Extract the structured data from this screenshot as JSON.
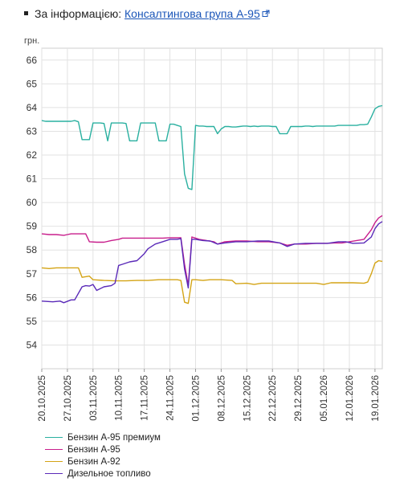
{
  "source": {
    "prefix": "За інформацією:",
    "link_text": "Консалтингова група А-95",
    "icon": "external-link-icon"
  },
  "chart_data": {
    "type": "line",
    "title": "",
    "ylabel": "грн.",
    "xlabel": "",
    "ylim": [
      53,
      66.5
    ],
    "yticks": [
      54,
      55,
      56,
      57,
      58,
      59,
      60,
      61,
      62,
      63,
      64,
      65,
      66
    ],
    "xlim": [
      "2025-10-20",
      "2026-01-21"
    ],
    "xticks": [
      "2025-10-20",
      "2025-10-27",
      "2025-11-03",
      "2025-11-10",
      "2025-11-17",
      "2025-11-24",
      "2025-12-01",
      "2025-12-08",
      "2025-12-15",
      "2025-12-22",
      "2025-12-29",
      "2026-01-05",
      "2026-01-12",
      "2026-01-19"
    ],
    "xtick_labels": [
      "20.10.2025",
      "27.10.2025",
      "03.11.2025",
      "10.11.2025",
      "17.11.2025",
      "24.11.2025",
      "01.12.2025",
      "08.12.2025",
      "15.12.2025",
      "22.12.2025",
      "29.12.2025",
      "05.01.2026",
      "12.01.2026",
      "19.01.2026"
    ],
    "grid": true,
    "legend_position": "bottom",
    "series": [
      {
        "name": "Бензин А-95 премиум",
        "color": "#2ab0a0",
        "points": [
          [
            "2025-10-20",
            63.45
          ],
          [
            "2025-10-21",
            63.42
          ],
          [
            "2025-10-22",
            63.42
          ],
          [
            "2025-10-23",
            63.42
          ],
          [
            "2025-10-24",
            63.42
          ],
          [
            "2025-10-25",
            63.42
          ],
          [
            "2025-10-26",
            63.42
          ],
          [
            "2025-10-27",
            63.42
          ],
          [
            "2025-10-28",
            63.42
          ],
          [
            "2025-10-29",
            63.45
          ],
          [
            "2025-10-30",
            63.4
          ],
          [
            "2025-10-31",
            62.65
          ],
          [
            "2025-11-01",
            62.65
          ],
          [
            "2025-11-02",
            62.65
          ],
          [
            "2025-11-03",
            63.35
          ],
          [
            "2025-11-04",
            63.35
          ],
          [
            "2025-11-05",
            63.35
          ],
          [
            "2025-11-06",
            63.33
          ],
          [
            "2025-11-07",
            62.6
          ],
          [
            "2025-11-08",
            63.35
          ],
          [
            "2025-11-09",
            63.35
          ],
          [
            "2025-11-10",
            63.35
          ],
          [
            "2025-11-11",
            63.35
          ],
          [
            "2025-11-12",
            63.33
          ],
          [
            "2025-11-13",
            62.6
          ],
          [
            "2025-11-14",
            62.6
          ],
          [
            "2025-11-15",
            62.6
          ],
          [
            "2025-11-16",
            63.35
          ],
          [
            "2025-11-17",
            63.35
          ],
          [
            "2025-11-18",
            63.35
          ],
          [
            "2025-11-19",
            63.35
          ],
          [
            "2025-11-20",
            63.35
          ],
          [
            "2025-11-21",
            62.6
          ],
          [
            "2025-11-22",
            62.6
          ],
          [
            "2025-11-23",
            62.6
          ],
          [
            "2025-11-24",
            63.3
          ],
          [
            "2025-11-25",
            63.3
          ],
          [
            "2025-11-26",
            63.25
          ],
          [
            "2025-11-27",
            63.2
          ],
          [
            "2025-11-28",
            61.2
          ],
          [
            "2025-11-29",
            60.6
          ],
          [
            "2025-11-30",
            60.55
          ],
          [
            "2025-12-01",
            63.25
          ],
          [
            "2025-12-02",
            63.22
          ],
          [
            "2025-12-03",
            63.22
          ],
          [
            "2025-12-04",
            63.2
          ],
          [
            "2025-12-05",
            63.2
          ],
          [
            "2025-12-06",
            63.2
          ],
          [
            "2025-12-07",
            62.9
          ],
          [
            "2025-12-08",
            63.1
          ],
          [
            "2025-12-09",
            63.2
          ],
          [
            "2025-12-10",
            63.2
          ],
          [
            "2025-12-11",
            63.18
          ],
          [
            "2025-12-12",
            63.18
          ],
          [
            "2025-12-13",
            63.2
          ],
          [
            "2025-12-14",
            63.22
          ],
          [
            "2025-12-15",
            63.22
          ],
          [
            "2025-12-16",
            63.2
          ],
          [
            "2025-12-17",
            63.22
          ],
          [
            "2025-12-18",
            63.2
          ],
          [
            "2025-12-19",
            63.22
          ],
          [
            "2025-12-20",
            63.22
          ],
          [
            "2025-12-21",
            63.22
          ],
          [
            "2025-12-22",
            63.2
          ],
          [
            "2025-12-23",
            63.2
          ],
          [
            "2025-12-24",
            62.9
          ],
          [
            "2025-12-25",
            62.9
          ],
          [
            "2025-12-26",
            62.9
          ],
          [
            "2025-12-27",
            63.2
          ],
          [
            "2025-12-28",
            63.2
          ],
          [
            "2025-12-29",
            63.2
          ],
          [
            "2025-12-30",
            63.2
          ],
          [
            "2025-12-31",
            63.22
          ],
          [
            "2026-01-01",
            63.22
          ],
          [
            "2026-01-02",
            63.2
          ],
          [
            "2026-01-03",
            63.22
          ],
          [
            "2026-01-04",
            63.22
          ],
          [
            "2026-01-05",
            63.22
          ],
          [
            "2026-01-06",
            63.22
          ],
          [
            "2026-01-07",
            63.22
          ],
          [
            "2026-01-08",
            63.22
          ],
          [
            "2026-01-09",
            63.25
          ],
          [
            "2026-01-10",
            63.25
          ],
          [
            "2026-01-11",
            63.25
          ],
          [
            "2026-01-12",
            63.25
          ],
          [
            "2026-01-13",
            63.25
          ],
          [
            "2026-01-14",
            63.25
          ],
          [
            "2026-01-15",
            63.28
          ],
          [
            "2026-01-16",
            63.28
          ],
          [
            "2026-01-17",
            63.3
          ],
          [
            "2026-01-18",
            63.6
          ],
          [
            "2026-01-19",
            63.95
          ],
          [
            "2026-01-20",
            64.05
          ],
          [
            "2026-01-21",
            64.08
          ]
        ]
      },
      {
        "name": "Бензин А-95",
        "color": "#c81e8c",
        "points": [
          [
            "2025-10-20",
            58.68
          ],
          [
            "2025-10-22",
            58.65
          ],
          [
            "2025-10-24",
            58.65
          ],
          [
            "2025-10-26",
            58.62
          ],
          [
            "2025-10-27",
            58.65
          ],
          [
            "2025-10-28",
            58.68
          ],
          [
            "2025-10-30",
            58.68
          ],
          [
            "2025-11-01",
            58.68
          ],
          [
            "2025-11-02",
            58.35
          ],
          [
            "2025-11-04",
            58.33
          ],
          [
            "2025-11-06",
            58.33
          ],
          [
            "2025-11-08",
            58.4
          ],
          [
            "2025-11-10",
            58.45
          ],
          [
            "2025-11-11",
            58.5
          ],
          [
            "2025-11-14",
            58.5
          ],
          [
            "2025-11-18",
            58.5
          ],
          [
            "2025-11-22",
            58.5
          ],
          [
            "2025-11-24",
            58.52
          ],
          [
            "2025-11-27",
            58.52
          ],
          [
            "2025-11-28",
            57.4
          ],
          [
            "2025-11-29",
            56.5
          ],
          [
            "2025-11-30",
            58.55
          ],
          [
            "2025-12-01",
            58.5
          ],
          [
            "2025-12-02",
            58.45
          ],
          [
            "2025-12-04",
            58.4
          ],
          [
            "2025-12-06",
            58.35
          ],
          [
            "2025-12-07",
            58.25
          ],
          [
            "2025-12-09",
            58.35
          ],
          [
            "2025-12-12",
            58.38
          ],
          [
            "2025-12-15",
            58.38
          ],
          [
            "2025-12-18",
            58.35
          ],
          [
            "2025-12-21",
            58.35
          ],
          [
            "2025-12-24",
            58.3
          ],
          [
            "2025-12-26",
            58.2
          ],
          [
            "2025-12-28",
            58.25
          ],
          [
            "2025-12-31",
            58.25
          ],
          [
            "2026-01-03",
            58.28
          ],
          [
            "2026-01-06",
            58.28
          ],
          [
            "2026-01-08",
            58.3
          ],
          [
            "2026-01-10",
            58.3
          ],
          [
            "2026-01-12",
            58.35
          ],
          [
            "2026-01-14",
            58.4
          ],
          [
            "2026-01-16",
            58.45
          ],
          [
            "2026-01-18",
            58.85
          ],
          [
            "2026-01-19",
            59.15
          ],
          [
            "2026-01-20",
            59.35
          ],
          [
            "2026-01-21",
            59.45
          ]
        ]
      },
      {
        "name": "Бензин А-92",
        "color": "#d4a416",
        "points": [
          [
            "2025-10-20",
            57.25
          ],
          [
            "2025-10-22",
            57.22
          ],
          [
            "2025-10-24",
            57.25
          ],
          [
            "2025-10-27",
            57.25
          ],
          [
            "2025-10-30",
            57.25
          ],
          [
            "2025-10-31",
            56.85
          ],
          [
            "2025-11-02",
            56.9
          ],
          [
            "2025-11-03",
            56.75
          ],
          [
            "2025-11-06",
            56.72
          ],
          [
            "2025-11-09",
            56.7
          ],
          [
            "2025-11-12",
            56.7
          ],
          [
            "2025-11-15",
            56.72
          ],
          [
            "2025-11-18",
            56.72
          ],
          [
            "2025-11-21",
            56.75
          ],
          [
            "2025-11-24",
            56.75
          ],
          [
            "2025-11-26",
            56.75
          ],
          [
            "2025-11-27",
            56.72
          ],
          [
            "2025-11-28",
            55.8
          ],
          [
            "2025-11-29",
            55.75
          ],
          [
            "2025-11-30",
            56.75
          ],
          [
            "2025-12-01",
            56.75
          ],
          [
            "2025-12-03",
            56.72
          ],
          [
            "2025-12-05",
            56.75
          ],
          [
            "2025-12-08",
            56.75
          ],
          [
            "2025-12-11",
            56.72
          ],
          [
            "2025-12-12",
            56.58
          ],
          [
            "2025-12-15",
            56.6
          ],
          [
            "2025-12-17",
            56.55
          ],
          [
            "2025-12-19",
            56.6
          ],
          [
            "2025-12-22",
            56.6
          ],
          [
            "2025-12-25",
            56.6
          ],
          [
            "2025-12-28",
            56.6
          ],
          [
            "2025-12-31",
            56.6
          ],
          [
            "2026-01-03",
            56.6
          ],
          [
            "2026-01-05",
            56.55
          ],
          [
            "2026-01-07",
            56.62
          ],
          [
            "2026-01-10",
            56.62
          ],
          [
            "2026-01-13",
            56.62
          ],
          [
            "2026-01-16",
            56.6
          ],
          [
            "2026-01-17",
            56.65
          ],
          [
            "2026-01-18",
            57.0
          ],
          [
            "2026-01-19",
            57.45
          ],
          [
            "2026-01-20",
            57.55
          ],
          [
            "2026-01-21",
            57.52
          ]
        ]
      },
      {
        "name": "Дизельное топливо",
        "color": "#5a2ab8",
        "points": [
          [
            "2025-10-20",
            55.85
          ],
          [
            "2025-10-23",
            55.82
          ],
          [
            "2025-10-25",
            55.85
          ],
          [
            "2025-10-26",
            55.78
          ],
          [
            "2025-10-28",
            55.9
          ],
          [
            "2025-10-29",
            55.9
          ],
          [
            "2025-10-31",
            56.45
          ],
          [
            "2025-11-01",
            56.5
          ],
          [
            "2025-11-02",
            56.48
          ],
          [
            "2025-11-03",
            56.55
          ],
          [
            "2025-11-04",
            56.3
          ],
          [
            "2025-11-06",
            56.45
          ],
          [
            "2025-11-08",
            56.5
          ],
          [
            "2025-11-09",
            56.6
          ],
          [
            "2025-11-10",
            57.35
          ],
          [
            "2025-11-11",
            57.4
          ],
          [
            "2025-11-13",
            57.5
          ],
          [
            "2025-11-15",
            57.55
          ],
          [
            "2025-11-17",
            57.85
          ],
          [
            "2025-11-18",
            58.05
          ],
          [
            "2025-11-20",
            58.25
          ],
          [
            "2025-11-22",
            58.35
          ],
          [
            "2025-11-24",
            58.45
          ],
          [
            "2025-11-26",
            58.45
          ],
          [
            "2025-11-27",
            58.48
          ],
          [
            "2025-11-28",
            57.2
          ],
          [
            "2025-11-29",
            56.4
          ],
          [
            "2025-11-30",
            58.45
          ],
          [
            "2025-12-01",
            58.45
          ],
          [
            "2025-12-03",
            58.4
          ],
          [
            "2025-12-05",
            58.38
          ],
          [
            "2025-12-07",
            58.25
          ],
          [
            "2025-12-09",
            58.3
          ],
          [
            "2025-12-12",
            58.35
          ],
          [
            "2025-12-15",
            58.35
          ],
          [
            "2025-12-18",
            58.38
          ],
          [
            "2025-12-21",
            58.38
          ],
          [
            "2025-12-24",
            58.3
          ],
          [
            "2025-12-26",
            58.15
          ],
          [
            "2025-12-28",
            58.25
          ],
          [
            "2025-12-31",
            58.28
          ],
          [
            "2026-01-03",
            58.28
          ],
          [
            "2026-01-06",
            58.28
          ],
          [
            "2026-01-09",
            58.35
          ],
          [
            "2026-01-11",
            58.35
          ],
          [
            "2026-01-13",
            58.28
          ],
          [
            "2026-01-16",
            58.3
          ],
          [
            "2026-01-18",
            58.55
          ],
          [
            "2026-01-19",
            58.9
          ],
          [
            "2026-01-20",
            59.1
          ],
          [
            "2026-01-21",
            59.2
          ]
        ]
      }
    ]
  }
}
